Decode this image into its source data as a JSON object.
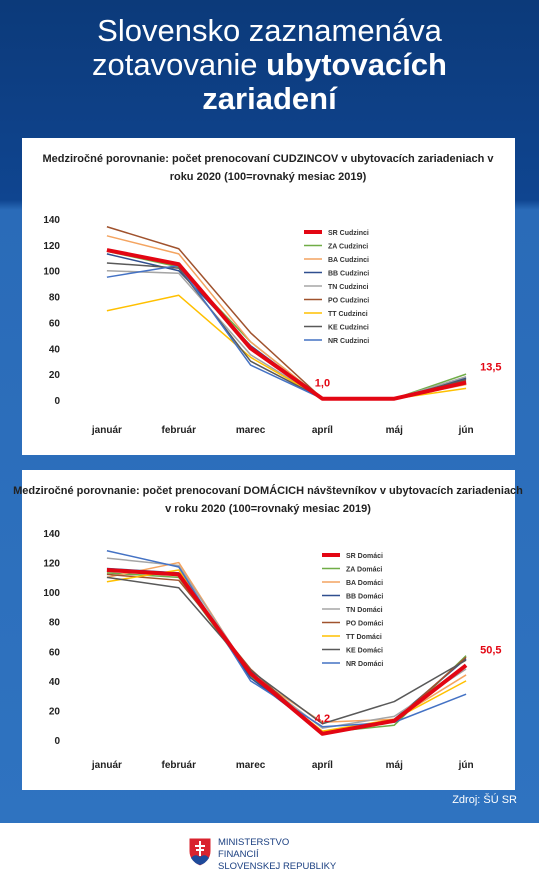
{
  "header": {
    "title_regular": "Slovensko zaznamenáva zotavovanie",
    "title_bold": "ubytovacích zariadení"
  },
  "chart_data": [
    {
      "type": "line",
      "title": "Medziročné porovnanie: počet prenocovaní CUDZINCOV v ubytovacích zariadeniach v roku 2020 (100=rovnaký mesiac 2019)",
      "categories": [
        "január",
        "február",
        "marec",
        "apríl",
        "máj",
        "jún"
      ],
      "ylim": [
        0,
        140
      ],
      "yticks": [
        0,
        20,
        40,
        60,
        80,
        100,
        120,
        140
      ],
      "legend": "upper right",
      "series": [
        {
          "name": "SR Cudzinci",
          "color": "#e30613",
          "values": [
            116,
            105,
            40,
            1.0,
            1,
            13.5
          ],
          "value_labels": [
            null,
            null,
            null,
            "1,0",
            null,
            "13,5"
          ]
        },
        {
          "name": "ZA Cudzinci",
          "color": "#70ad47",
          "values": [
            115,
            103,
            45,
            1,
            1,
            20
          ]
        },
        {
          "name": "BA Cudzinci",
          "color": "#f4a460",
          "values": [
            127,
            113,
            45,
            1,
            1,
            12
          ]
        },
        {
          "name": "BB Cudzinci",
          "color": "#2f4f8f",
          "values": [
            113,
            100,
            42,
            1,
            1,
            17
          ]
        },
        {
          "name": "TN Cudzinci",
          "color": "#a5a5a5",
          "values": [
            100,
            98,
            35,
            1,
            1,
            18
          ]
        },
        {
          "name": "PO Cudzinci",
          "color": "#a0522d",
          "values": [
            134,
            117,
            52,
            1,
            1,
            15
          ]
        },
        {
          "name": "TT Cudzinci",
          "color": "#ffc000",
          "values": [
            69,
            81,
            33,
            1,
            1,
            9
          ]
        },
        {
          "name": "KE Cudzinci",
          "color": "#595959",
          "values": [
            106,
            102,
            30,
            1,
            1,
            16
          ]
        },
        {
          "name": "NR Cudzinci",
          "color": "#4472c4",
          "values": [
            95,
            104,
            27,
            1,
            1,
            14
          ]
        }
      ]
    },
    {
      "type": "line",
      "title": "Medziročné porovnanie: počet prenocovaní DOMÁCICH návštevníkov v ubytovacích zariadeniach v roku 2020 (100=rovnaký mesiac 2019)",
      "categories": [
        "január",
        "február",
        "marec",
        "apríl",
        "máj",
        "jún"
      ],
      "ylim": [
        0,
        140
      ],
      "yticks": [
        0,
        20,
        40,
        60,
        80,
        100,
        120,
        140
      ],
      "legend": "upper right",
      "series": [
        {
          "name": "SR Domáci",
          "color": "#e30613",
          "values": [
            115,
            112,
            45,
            4.2,
            13,
            50.5
          ],
          "value_labels": [
            null,
            null,
            null,
            "4,2",
            null,
            "50,5"
          ]
        },
        {
          "name": "ZA Domáci",
          "color": "#70ad47",
          "values": [
            113,
            110,
            43,
            5,
            10,
            57
          ]
        },
        {
          "name": "BA Domáci",
          "color": "#f4a460",
          "values": [
            110,
            120,
            44,
            12,
            14,
            44
          ]
        },
        {
          "name": "BB Domáci",
          "color": "#2f4f8f",
          "values": [
            116,
            113,
            42,
            5,
            14,
            55
          ]
        },
        {
          "name": "TN Domáci",
          "color": "#a5a5a5",
          "values": [
            123,
            118,
            45,
            8,
            16,
            48
          ]
        },
        {
          "name": "PO Domáci",
          "color": "#a0522d",
          "values": [
            112,
            108,
            48,
            4,
            13,
            56
          ]
        },
        {
          "name": "TT Domáci",
          "color": "#ffc000",
          "values": [
            107,
            115,
            44,
            6,
            14,
            40
          ]
        },
        {
          "name": "KE Domáci",
          "color": "#595959",
          "values": [
            110,
            103,
            47,
            11,
            26,
            54
          ]
        },
        {
          "name": "NR Domáci",
          "color": "#4472c4",
          "values": [
            128,
            117,
            40,
            9,
            12,
            31
          ]
        }
      ]
    }
  ],
  "source": "Zdroj: ŠÚ SR",
  "footer": {
    "lines": [
      "MINISTERSTVO",
      "FINANCIÍ",
      "SLOVENSKEJ REPUBLIKY"
    ]
  }
}
